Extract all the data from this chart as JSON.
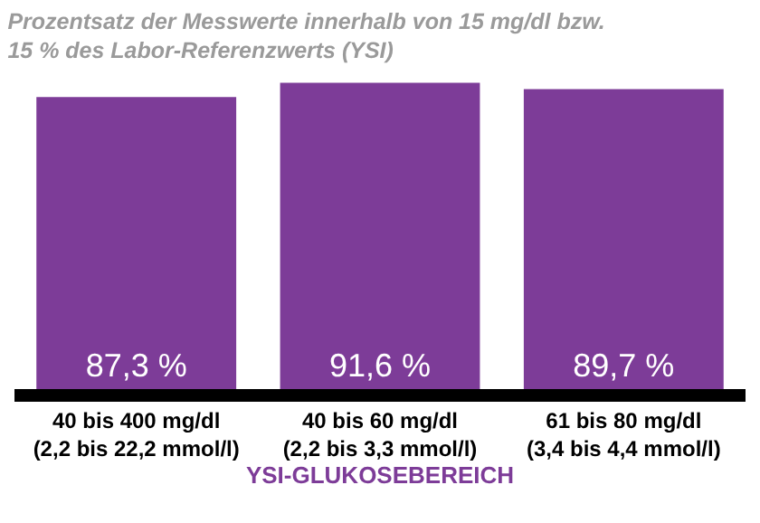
{
  "chart_data": {
    "type": "bar",
    "title": "Prozentsatz der Messwerte innerhalb von 15 mg/dl bzw.\n15 % des Labor-Referenzwerts (YSI)",
    "xlabel": "YSI-GLUKOSEBEREICH",
    "categories": [
      "40 bis 400 mg/dl\n(2,2 bis 22,2 mmol/l)",
      "40 bis 60 mg/dl\n(2,2 bis 3,3 mmol/l)",
      "61 bis 80 mg/dl\n(3,4 bis 4,4 mmol/l)"
    ],
    "values": [
      87.3,
      91.6,
      89.7
    ],
    "value_labels": [
      "87,3 %",
      "91,6 %",
      "89,7 %"
    ],
    "color": "#7d3c98",
    "grid": false,
    "legend": false
  }
}
